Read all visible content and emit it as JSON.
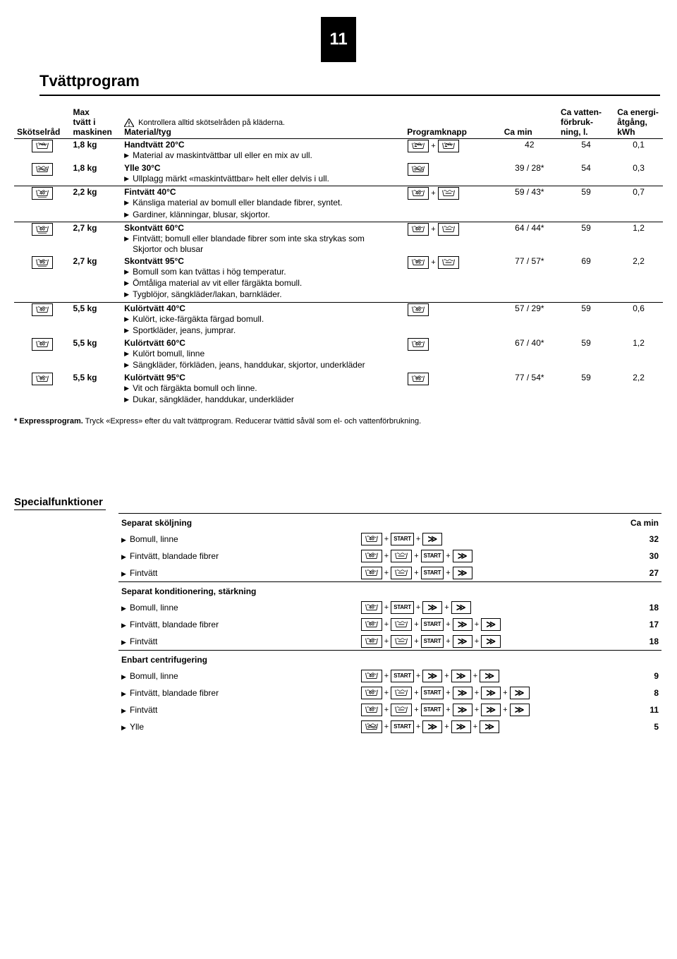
{
  "page_number": "11",
  "title": "Tvättprogram",
  "hdr": {
    "care": "Skötselråd",
    "max1": "Max",
    "max2": "tvätt i",
    "max3": "maskinen",
    "note": "Kontrollera alltid skötselråden på kläderna.",
    "mat": "Material/tyg",
    "prog": "Programknapp",
    "min": "Ca min",
    "wat1": "Ca vatten-",
    "wat2": "förbruk-",
    "wat3": "ning, l.",
    "en1": "Ca energi-",
    "en2": "åtgång,",
    "en3": "kWh"
  },
  "rows": [
    {
      "grp": true,
      "icon": "hand",
      "max": "1,8 kg",
      "name": "Handtvätt 20°C",
      "notes": [
        "Material av maskintvättbar ull eller en mix av ull."
      ],
      "prog": [
        {
          "t": "basin",
          "v": "hand2"
        },
        {
          "t": "plus"
        },
        {
          "t": "basin",
          "v": "hand2"
        }
      ],
      "min": "42",
      "wat": "54",
      "en": "0,1"
    },
    {
      "icon": "wool",
      "max": "1,8 kg",
      "name": "Ylle 30°C",
      "notes": [
        "Ullplagg märkt «maskintvättbar» helt eller delvis i ull."
      ],
      "prog": [
        {
          "t": "basin",
          "v": "wool2"
        }
      ],
      "min": "39 / 28*",
      "wat": "54",
      "en": "0,3"
    },
    {
      "grp": true,
      "icon": "40u",
      "max": "2,2 kg",
      "name": "Fintvätt 40°C",
      "notes": [
        "Känsliga material av bomull eller blandade fibrer, syntet.",
        "Gardiner, klänningar, blusar, skjortor."
      ],
      "prog": [
        {
          "t": "basin",
          "v": "40"
        },
        {
          "t": "plus"
        },
        {
          "t": "basin",
          "v": "rinse"
        }
      ],
      "min": "59 / 43*",
      "wat": "59",
      "en": "0,7"
    },
    {
      "grp": true,
      "icon": "60u",
      "max": "2,7 kg",
      "name": "Skontvätt 60°C",
      "notes": [
        "Fintvätt; bomull eller blandade fibrer som inte ska strykas som",
        "Skjortor och blusar"
      ],
      "prog": [
        {
          "t": "basin",
          "v": "60"
        },
        {
          "t": "plus"
        },
        {
          "t": "basin",
          "v": "rinse"
        }
      ],
      "min": "64 / 44*",
      "wat": "59",
      "en": "1,2",
      "nobul": [
        false,
        true
      ]
    },
    {
      "icon": "95u",
      "max": "2,7 kg",
      "name": "Skontvätt 95°C",
      "notes": [
        "Bomull som kan tvättas i hög temperatur.",
        "Ömtåliga material av vit eller färgäkta bomull.",
        "Tygblöjor, sängkläder/lakan, barnkläder."
      ],
      "prog": [
        {
          "t": "basin",
          "v": "95"
        },
        {
          "t": "plus"
        },
        {
          "t": "basin",
          "v": "rinse"
        }
      ],
      "min": "77 / 57*",
      "wat": "69",
      "en": "2,2"
    },
    {
      "grp": true,
      "icon": "40",
      "max": "5,5 kg",
      "name": "Kulörtvätt 40°C",
      "notes": [
        "Kulört, icke-färgäkta färgad bomull.",
        "Sportkläder, jeans, jumprar."
      ],
      "prog": [
        {
          "t": "basin",
          "v": "40"
        }
      ],
      "min": "57 / 29*",
      "wat": "59",
      "en": "0,6"
    },
    {
      "icon": "60",
      "max": "5,5 kg",
      "name": "Kulörtvätt 60°C",
      "notes": [
        "Kulört bomull, linne",
        "Sängkläder, förkläden, jeans, handdukar, skjortor, underkläder"
      ],
      "prog": [
        {
          "t": "basin",
          "v": "60"
        }
      ],
      "min": "67 / 40*",
      "wat": "59",
      "en": "1,2"
    },
    {
      "icon": "95",
      "max": "5,5 kg",
      "name": "Kulörtvätt 95°C",
      "notes": [
        "Vit och färgäkta bomull och linne.",
        "Dukar, sängkläder, handdukar, underkläder"
      ],
      "prog": [
        {
          "t": "basin",
          "v": "95"
        }
      ],
      "min": "77 / 54*",
      "wat": "59",
      "en": "2,2"
    }
  ],
  "footnote_b": "* Expressprogram.",
  "footnote_r": " Tryck «Express» efter du valt tvättprogram. Reducerar tvättid såväl som el- och vattenförbrukning.",
  "spec_title": "Specialfunktioner",
  "spec_sections": [
    {
      "title": "Separat sköljning",
      "hdr_right": "Ca min",
      "rows": [
        {
          "lbl": "Bomull, linne",
          "btn": [
            {
              "t": "basin",
              "v": "40"
            },
            {
              "t": "plus"
            },
            {
              "t": "start"
            },
            {
              "t": "plus"
            },
            {
              "t": "ff"
            }
          ],
          "min": "32"
        },
        {
          "lbl": "Fintvätt, blandade fibrer",
          "btn": [
            {
              "t": "basin",
              "v": "60"
            },
            {
              "t": "plus"
            },
            {
              "t": "basin",
              "v": "rinse"
            },
            {
              "t": "plus"
            },
            {
              "t": "start"
            },
            {
              "t": "plus"
            },
            {
              "t": "ff"
            }
          ],
          "min": "30"
        },
        {
          "lbl": "Fintvätt",
          "btn": [
            {
              "t": "basin",
              "v": "40"
            },
            {
              "t": "plus"
            },
            {
              "t": "basin",
              "v": "rinse"
            },
            {
              "t": "plus"
            },
            {
              "t": "start"
            },
            {
              "t": "plus"
            },
            {
              "t": "ff"
            }
          ],
          "min": "27"
        }
      ]
    },
    {
      "title": "Separat konditionering, stärkning",
      "rows": [
        {
          "lbl": "Bomull, linne",
          "btn": [
            {
              "t": "basin",
              "v": "40"
            },
            {
              "t": "plus"
            },
            {
              "t": "start"
            },
            {
              "t": "plus"
            },
            {
              "t": "ff"
            },
            {
              "t": "plus"
            },
            {
              "t": "ff"
            }
          ],
          "min": "18"
        },
        {
          "lbl": "Fintvätt, blandade fibrer",
          "btn": [
            {
              "t": "basin",
              "v": "60"
            },
            {
              "t": "plus"
            },
            {
              "t": "basin",
              "v": "rinse"
            },
            {
              "t": "plus"
            },
            {
              "t": "start"
            },
            {
              "t": "plus"
            },
            {
              "t": "ff"
            },
            {
              "t": "plus"
            },
            {
              "t": "ff"
            }
          ],
          "min": "17"
        },
        {
          "lbl": "Fintvätt",
          "btn": [
            {
              "t": "basin",
              "v": "40"
            },
            {
              "t": "plus"
            },
            {
              "t": "basin",
              "v": "rinse"
            },
            {
              "t": "plus"
            },
            {
              "t": "start"
            },
            {
              "t": "plus"
            },
            {
              "t": "ff"
            },
            {
              "t": "plus"
            },
            {
              "t": "ff"
            }
          ],
          "min": "18"
        }
      ]
    },
    {
      "title": "Enbart centrifugering",
      "rows": [
        {
          "lbl": "Bomull, linne",
          "btn": [
            {
              "t": "basin",
              "v": "40"
            },
            {
              "t": "plus"
            },
            {
              "t": "start"
            },
            {
              "t": "plus"
            },
            {
              "t": "ff"
            },
            {
              "t": "plus"
            },
            {
              "t": "ff"
            },
            {
              "t": "plus"
            },
            {
              "t": "ff"
            }
          ],
          "min": "9"
        },
        {
          "lbl": "Fintvätt, blandade fibrer",
          "btn": [
            {
              "t": "basin",
              "v": "60"
            },
            {
              "t": "plus"
            },
            {
              "t": "basin",
              "v": "rinse"
            },
            {
              "t": "plus"
            },
            {
              "t": "start"
            },
            {
              "t": "plus"
            },
            {
              "t": "ff"
            },
            {
              "t": "plus"
            },
            {
              "t": "ff"
            },
            {
              "t": "plus"
            },
            {
              "t": "ff"
            }
          ],
          "min": "8"
        },
        {
          "lbl": "Fintvätt",
          "btn": [
            {
              "t": "basin",
              "v": "40"
            },
            {
              "t": "plus"
            },
            {
              "t": "basin",
              "v": "rinse"
            },
            {
              "t": "plus"
            },
            {
              "t": "start"
            },
            {
              "t": "plus"
            },
            {
              "t": "ff"
            },
            {
              "t": "plus"
            },
            {
              "t": "ff"
            },
            {
              "t": "plus"
            },
            {
              "t": "ff"
            }
          ],
          "min": "11"
        },
        {
          "lbl": "Ylle",
          "btn": [
            {
              "t": "basin",
              "v": "wool2"
            },
            {
              "t": "plus"
            },
            {
              "t": "start"
            },
            {
              "t": "plus"
            },
            {
              "t": "ff"
            },
            {
              "t": "plus"
            },
            {
              "t": "ff"
            },
            {
              "t": "plus"
            },
            {
              "t": "ff"
            }
          ],
          "min": "5"
        }
      ]
    }
  ]
}
